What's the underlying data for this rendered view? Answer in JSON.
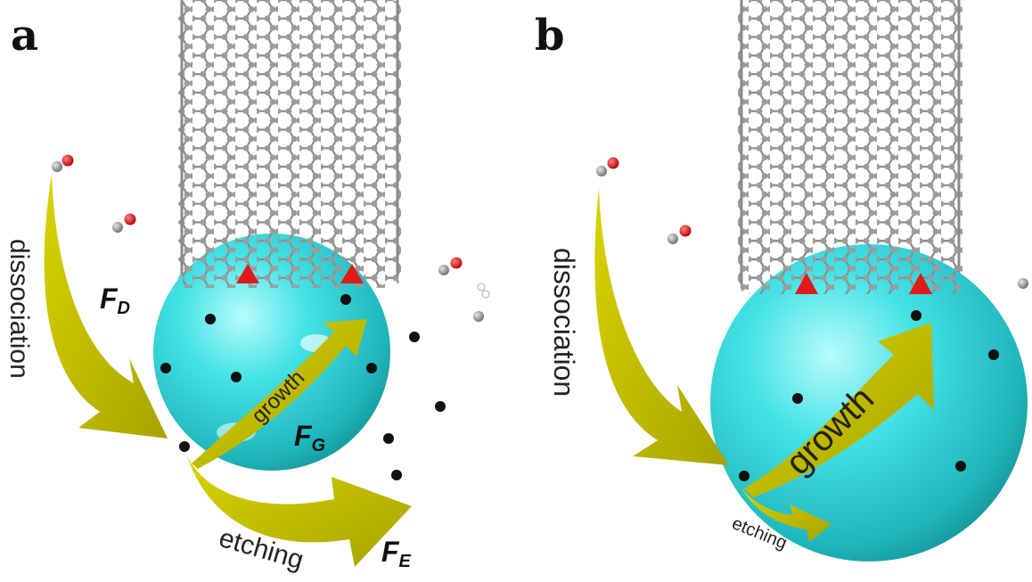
{
  "panels": [
    {
      "label": "a",
      "dissociation_label": "dissociation",
      "force_d": {
        "symbol": "F",
        "subscript": "D"
      },
      "growth_label": "growth",
      "force_g": {
        "symbol": "F",
        "subscript": "G"
      },
      "etching_label": "etching",
      "force_e": {
        "symbol": "F",
        "subscript": "E"
      }
    },
    {
      "label": "b",
      "dissociation_label": "dissociation",
      "growth_label": "growth",
      "etching_label": "etching"
    }
  ],
  "colors": {
    "catalyst_sphere": "#2fd4d8",
    "arrow": "#c9c400",
    "carbon_atom": "#9a9a9a",
    "oxygen_atom": "#e01010",
    "carbon_in_catalyst": "#111111",
    "active_site": "#e01a1a"
  }
}
